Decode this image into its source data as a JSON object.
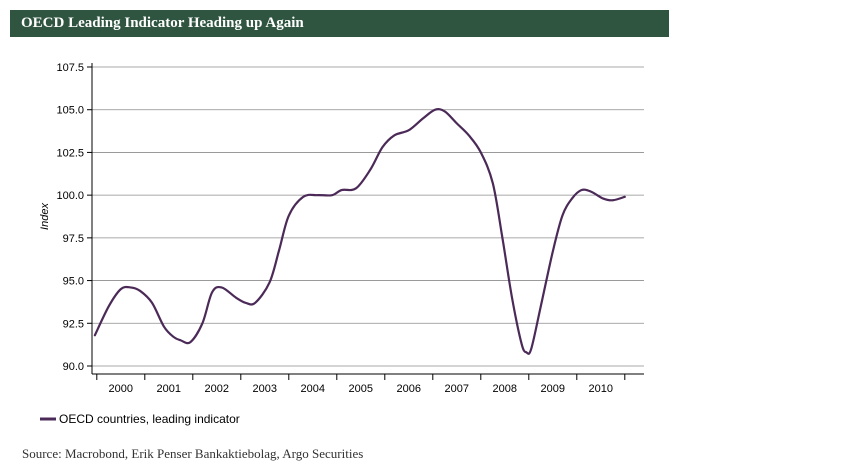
{
  "header": {
    "title": "OECD Leading Indicator Heading up Again"
  },
  "footer": {
    "source": "Source: Macrobond, Erik Penser Bankaktiebolag, Argo Securities"
  },
  "colors": {
    "header_bg": "#2f5540",
    "series": "#4b2a58",
    "grid": "#8c8c8c"
  },
  "chart_data": {
    "type": "line",
    "title": "",
    "xlabel": "",
    "ylabel": "Index",
    "ylim": [
      90.0,
      107.5
    ],
    "yticks": [
      "90.0",
      "92.5",
      "95.0",
      "97.5",
      "100.0",
      "102.5",
      "105.0",
      "107.5"
    ],
    "xlim": [
      1999.9,
      2011.4
    ],
    "xticks": [
      "2000",
      "2001",
      "2002",
      "2003",
      "2004",
      "2005",
      "2006",
      "2007",
      "2008",
      "2009",
      "2010"
    ],
    "grid": true,
    "legend": "bottom-left",
    "series": [
      {
        "name": "OECD countries, leading indicator",
        "x": [
          1999.96,
          2000.25,
          2000.5,
          2000.7,
          2000.9,
          2001.15,
          2001.4,
          2001.6,
          2001.75,
          2001.95,
          2002.2,
          2002.4,
          2002.6,
          2002.9,
          2003.1,
          2003.3,
          2003.6,
          2003.8,
          2004.0,
          2004.3,
          2004.6,
          2004.9,
          2005.1,
          2005.4,
          2005.7,
          2005.95,
          2006.2,
          2006.5,
          2006.8,
          2007.05,
          2007.25,
          2007.5,
          2007.75,
          2008.0,
          2008.25,
          2008.45,
          2008.65,
          2008.85,
          2008.95,
          2009.05,
          2009.25,
          2009.5,
          2009.7,
          2009.9,
          2010.1,
          2010.3,
          2010.55,
          2010.75,
          2011.0
        ],
        "values": [
          91.8,
          93.5,
          94.5,
          94.6,
          94.4,
          93.7,
          92.3,
          91.7,
          91.5,
          91.4,
          92.5,
          94.3,
          94.6,
          94.0,
          93.7,
          93.7,
          94.9,
          96.8,
          98.8,
          99.9,
          100.0,
          100.0,
          100.3,
          100.4,
          101.5,
          102.8,
          103.5,
          103.8,
          104.5,
          105.0,
          104.9,
          104.2,
          103.5,
          102.5,
          100.7,
          97.5,
          94.0,
          91.3,
          90.8,
          91.0,
          93.5,
          96.7,
          98.8,
          99.8,
          100.3,
          100.2,
          99.8,
          99.7,
          99.9
        ]
      }
    ]
  }
}
